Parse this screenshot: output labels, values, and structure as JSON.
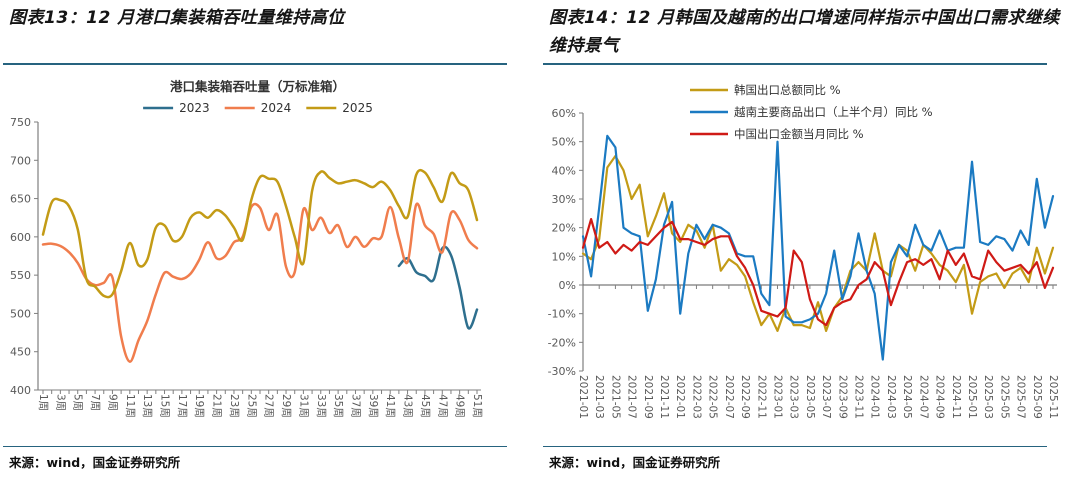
{
  "theme": {
    "divider_color": "#26637f",
    "axis_color": "#7f7f7f",
    "tick_label_color": "#595959",
    "chart_title_color": "#333333"
  },
  "figures": [
    {
      "title": "图表13：12 月港口集装箱吞吐量维持高位",
      "source": "来源：wind，国金证券研究所"
    },
    {
      "title": "图表14：12 月韩国及越南的出口增速同样指示中国出口需求继续维持景气",
      "source": "来源：wind，国金证券研究所"
    }
  ],
  "chart_data": [
    {
      "type": "line",
      "title": "港口集装箱吞吐量（万标准箱）",
      "xlabel": "",
      "ylabel": "",
      "ylim": [
        400,
        750
      ],
      "y_ticks": [
        750,
        700,
        650,
        600,
        550,
        500,
        450,
        400
      ],
      "y_suffix": "",
      "n_points": 51,
      "x_tick_labels": [
        "1周",
        "3周",
        "5周",
        "7周",
        "9周",
        "11周",
        "13周",
        "15周",
        "17周",
        "19周",
        "21周",
        "23周",
        "25周",
        "27周",
        "29周",
        "31周",
        "33周",
        "35周",
        "37周",
        "39周",
        "41周",
        "43周",
        "45周",
        "47周",
        "49周",
        "51周"
      ],
      "grid": false,
      "legend_position": "top-center",
      "series": [
        {
          "name": "2023",
          "color": "#2e6f8e",
          "values": [
            null,
            null,
            null,
            null,
            null,
            null,
            null,
            null,
            null,
            null,
            null,
            null,
            null,
            null,
            null,
            null,
            null,
            null,
            null,
            null,
            null,
            null,
            null,
            null,
            null,
            null,
            null,
            null,
            null,
            null,
            null,
            null,
            null,
            null,
            null,
            null,
            null,
            null,
            null,
            null,
            null,
            562,
            572,
            554,
            549,
            544,
            585,
            576,
            534,
            481,
            505
          ]
        },
        {
          "name": "2024",
          "color": "#f07d4d",
          "values": [
            590,
            591,
            588,
            580,
            566,
            545,
            537,
            540,
            547,
            470,
            437,
            465,
            490,
            525,
            553,
            548,
            545,
            552,
            570,
            593,
            572,
            575,
            593,
            600,
            639,
            638,
            609,
            629,
            561,
            554,
            636,
            609,
            625,
            605,
            615,
            587,
            600,
            587,
            598,
            600,
            639,
            598,
            567,
            642,
            615,
            604,
            580,
            631,
            622,
            596,
            585
          ]
        },
        {
          "name": "2025",
          "color": "#c39b16",
          "values": [
            603,
            645,
            648,
            640,
            610,
            545,
            535,
            523,
            525,
            555,
            592,
            563,
            570,
            612,
            615,
            595,
            600,
            625,
            632,
            625,
            635,
            628,
            612,
            596,
            648,
            678,
            676,
            672,
            640,
            600,
            566,
            660,
            685,
            677,
            670,
            672,
            674,
            670,
            665,
            672,
            661,
            640,
            626,
            681,
            684,
            665,
            646,
            683,
            670,
            661,
            622
          ]
        }
      ]
    },
    {
      "type": "line",
      "title": "",
      "xlabel": "",
      "ylabel": "",
      "ylim": [
        -30,
        60
      ],
      "y_ticks": [
        60,
        50,
        40,
        30,
        20,
        10,
        0,
        -10,
        -20,
        -30
      ],
      "y_suffix": "%",
      "n_points": 59,
      "x_tick_labels": [
        "2021-01",
        "2021-03",
        "2021-05",
        "2021-07",
        "2021-09",
        "2021-11",
        "2022-01",
        "2022-03",
        "2022-05",
        "2022-07",
        "2022-09",
        "2022-11",
        "2023-01",
        "2023-03",
        "2023-05",
        "2023-07",
        "2023-09",
        "2023-11",
        "2024-01",
        "2024-03",
        "2024-05",
        "2024-07",
        "2024-09",
        "2024-11",
        "2025-01",
        "2025-03",
        "2025-05",
        "2025-07",
        "2025-09",
        "2025-11"
      ],
      "grid": false,
      "legend_position": "top-left",
      "series": [
        {
          "name": "韩国出口总额同比 %",
          "color": "#c39b16",
          "values": [
            11,
            9,
            16,
            41,
            45,
            40,
            30,
            35,
            17,
            24,
            32,
            18,
            15,
            21,
            19,
            13,
            21,
            5,
            9,
            7,
            3,
            -6,
            -14,
            -10,
            -16,
            -8,
            -14,
            -14,
            -15,
            -6,
            -16,
            -8,
            -4,
            5,
            8,
            5,
            18,
            5,
            3,
            14,
            12,
            5,
            14,
            11,
            7,
            5,
            1,
            7,
            -10,
            1,
            3,
            4,
            -1,
            4,
            6,
            1,
            13,
            4,
            13
          ]
        },
        {
          "name": "越南主要商品出口（上半个月）同比 %",
          "color": "#1b7ac2",
          "values": [
            17,
            3,
            27,
            52,
            48,
            20,
            18,
            17,
            -9,
            2,
            21,
            29,
            -10,
            11,
            21,
            16,
            21,
            20,
            18,
            11,
            10,
            10,
            -3,
            -7,
            50,
            -11,
            -13,
            -13,
            -12,
            -10,
            -3,
            12,
            -5,
            3,
            18,
            5,
            -3,
            -26,
            8,
            14,
            10,
            21,
            14,
            12,
            19,
            12,
            13,
            13,
            43,
            15,
            14,
            17,
            16,
            12,
            19,
            14,
            37,
            20,
            31
          ]
        },
        {
          "name": "中国出口金额当月同比 %",
          "color": "#cf1a16",
          "values": [
            13,
            23,
            13,
            15,
            11,
            14,
            12,
            15,
            14,
            17,
            20,
            22,
            16,
            16,
            15,
            14,
            16,
            17,
            17,
            10,
            6,
            0,
            -9,
            -10,
            -11,
            -8,
            12,
            8,
            -5,
            -12,
            -14,
            -8,
            -6,
            -5,
            0,
            2,
            8,
            5,
            -7,
            1,
            8,
            9,
            7,
            9,
            2,
            12,
            7,
            11,
            3,
            2,
            12,
            8,
            5,
            6,
            7,
            4,
            8,
            -1,
            6
          ]
        }
      ]
    }
  ]
}
